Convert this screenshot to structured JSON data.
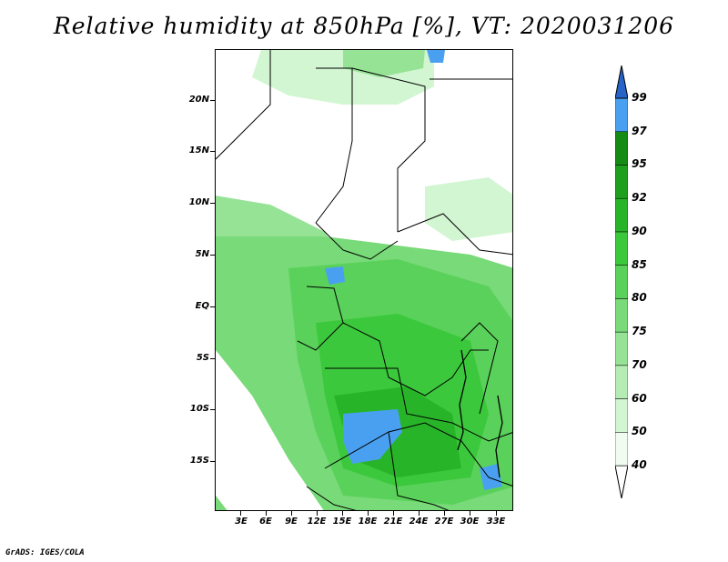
{
  "title": "Relative humidity at 850hPa [%], VT: 2020031206",
  "credit": "GrADS: IGES/COLA",
  "lat_labels": [
    "20N",
    "15N",
    "10N",
    "5N",
    "EQ",
    "5S",
    "10S",
    "15S"
  ],
  "lon_labels": [
    "3E",
    "6E",
    "9E",
    "12E",
    "15E",
    "18E",
    "21E",
    "24E",
    "27E",
    "30E",
    "33E"
  ],
  "colorbar": {
    "levels": [
      "40",
      "50",
      "60",
      "70",
      "75",
      "80",
      "85",
      "90",
      "92",
      "95",
      "97",
      "99"
    ],
    "colors": [
      "#f0fcf0",
      "#d2f5d2",
      "#b4ecb4",
      "#96e396",
      "#78da78",
      "#5ad15a",
      "#3cc83c",
      "#28b428",
      "#1ea01e",
      "#148c14",
      "#4aa0f0",
      "#3278e6",
      "#2864c8"
    ]
  }
}
